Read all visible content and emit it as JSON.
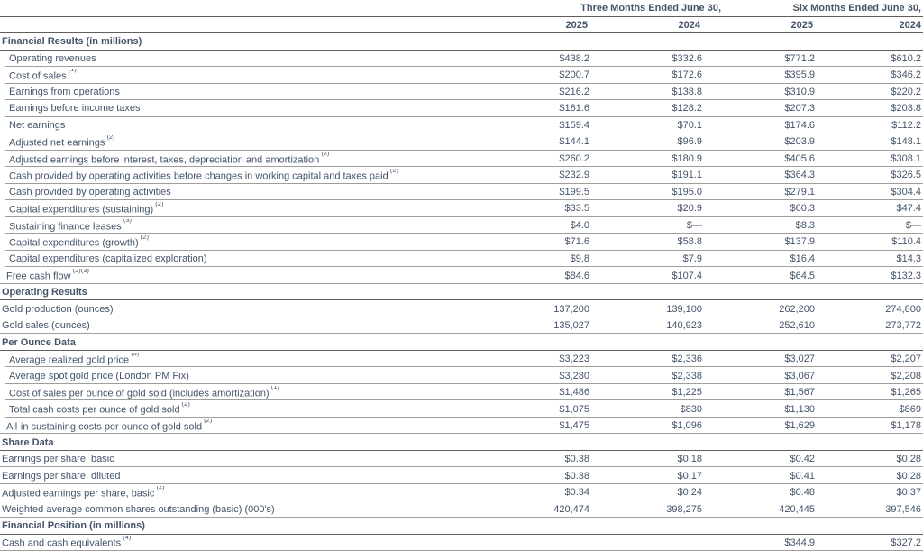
{
  "colors": {
    "text": "#44546a",
    "line_dark": "#5f5f5f",
    "line_light": "#9e9e9e",
    "background": "#ffffff"
  },
  "table": {
    "period_headers": [
      "Three Months Ended June 30,",
      "Six Months Ended June 30,"
    ],
    "year_headers": [
      "2025",
      "2024",
      "2025",
      "2024"
    ],
    "rows": [
      {
        "kind": "section",
        "label": "Financial Results (in millions)"
      },
      {
        "kind": "data",
        "indent": 1,
        "cut": true,
        "label": "Operating revenues",
        "sup": "",
        "values": [
          "$438.2",
          "$332.6",
          "$771.2",
          "$610.2"
        ]
      },
      {
        "kind": "data",
        "indent": 1,
        "cut": true,
        "label": "Cost of sales",
        "sup": "(1)",
        "values": [
          "$200.7",
          "$172.6",
          "$395.9",
          "$346.2"
        ]
      },
      {
        "kind": "data",
        "indent": 1,
        "cut": true,
        "label": "Earnings from operations",
        "sup": "",
        "values": [
          "$216.2",
          "$138.8",
          "$310.9",
          "$220.2"
        ]
      },
      {
        "kind": "data",
        "indent": 1,
        "cut": true,
        "label": "Earnings before income taxes",
        "sup": "",
        "values": [
          "$181.6",
          "$128.2",
          "$207.3",
          "$203.8"
        ]
      },
      {
        "kind": "data",
        "indent": 1,
        "cut": true,
        "label": "Net earnings",
        "sup": "",
        "values": [
          "$159.4",
          "$70.1",
          "$174.6",
          "$112.2"
        ]
      },
      {
        "kind": "data",
        "indent": 1,
        "cut": true,
        "label": "Adjusted net earnings",
        "sup": "(2)",
        "values": [
          "$144.1",
          "$96.9",
          "$203.9",
          "$148.1"
        ]
      },
      {
        "kind": "data",
        "indent": 1,
        "cut": true,
        "label": "Adjusted earnings before interest, taxes, depreciation and amortization",
        "sup": "(2)",
        "values": [
          "$260.2",
          "$180.9",
          "$405.6",
          "$308.1"
        ]
      },
      {
        "kind": "data",
        "indent": 1,
        "cut": true,
        "label": "Cash provided by operating activities before changes in working capital and taxes paid",
        "sup": "(2)",
        "values": [
          "$232.9",
          "$191.1",
          "$364.3",
          "$326.5"
        ]
      },
      {
        "kind": "data",
        "indent": 1,
        "cut": true,
        "label": "Cash provided by operating activities",
        "sup": "",
        "values": [
          "$199.5",
          "$195.0",
          "$279.1",
          "$304.4"
        ]
      },
      {
        "kind": "data",
        "indent": 1,
        "cut": true,
        "label": "Capital expenditures (sustaining)",
        "sup": "(2)",
        "values": [
          "$33.5",
          "$20.9",
          "$60.3",
          "$47.4"
        ]
      },
      {
        "kind": "data",
        "indent": 1,
        "cut": true,
        "label": "Sustaining finance leases",
        "sup": "(3)",
        "values": [
          "$4.0",
          "$—",
          "$8.3",
          "$—"
        ]
      },
      {
        "kind": "data",
        "indent": 1,
        "cut": true,
        "label": "Capital expenditures (growth)",
        "sup": "(2)",
        "values": [
          "$71.6",
          "$58.8",
          "$137.9",
          "$110.4"
        ]
      },
      {
        "kind": "data",
        "indent": 1,
        "cut": true,
        "label": "Capital expenditures (capitalized exploration)",
        "sup": "",
        "values": [
          "$9.8",
          "$7.9",
          "$16.4",
          "$14.3"
        ]
      },
      {
        "kind": "data",
        "indent": 2,
        "cut": false,
        "label": "Free cash flow",
        "sup": "(2)(3)",
        "values": [
          "$84.6",
          "$107.4",
          "$64.5",
          "$132.3"
        ]
      },
      {
        "kind": "section",
        "label": "Operating Results"
      },
      {
        "kind": "data",
        "indent": 0,
        "cut": false,
        "label": "Gold production (ounces)",
        "sup": "",
        "values": [
          "137,200",
          "139,100",
          "262,200",
          "274,800"
        ]
      },
      {
        "kind": "data",
        "indent": 0,
        "cut": false,
        "label": "Gold sales (ounces)",
        "sup": "",
        "values": [
          "135,027",
          "140,923",
          "252,610",
          "273,772"
        ]
      },
      {
        "kind": "section",
        "label": "Per Ounce Data"
      },
      {
        "kind": "data",
        "indent": 1,
        "cut": true,
        "label": "Average realized gold price",
        "sup": "(5)",
        "values": [
          "$3,223",
          "$2,336",
          "$3,027",
          "$2,207"
        ]
      },
      {
        "kind": "data",
        "indent": 1,
        "cut": true,
        "label": "Average spot gold price (London PM Fix)",
        "sup": "",
        "values": [
          "$3,280",
          "$2,338",
          "$3,067",
          "$2,208"
        ]
      },
      {
        "kind": "data",
        "indent": 1,
        "cut": true,
        "label": "Cost of sales per ounce of gold sold (includes amortization)",
        "sup": "(1)",
        "values": [
          "$1,486",
          "$1,225",
          "$1,567",
          "$1,265"
        ]
      },
      {
        "kind": "data",
        "indent": 1,
        "cut": true,
        "label": "Total cash costs per ounce of gold sold",
        "sup": "(2)",
        "values": [
          "$1,075",
          "$830",
          "$1,130",
          "$869"
        ]
      },
      {
        "kind": "data",
        "indent": 2,
        "cut": false,
        "label": "All-in sustaining costs per ounce of gold sold",
        "sup": "(2)",
        "values": [
          "$1,475",
          "$1,096",
          "$1,629",
          "$1,178"
        ]
      },
      {
        "kind": "section",
        "label": "Share Data"
      },
      {
        "kind": "data",
        "indent": 0,
        "cut": false,
        "label": "Earnings per share, basic",
        "sup": "",
        "values": [
          "$0.38",
          "$0.18",
          "$0.42",
          "$0.28"
        ]
      },
      {
        "kind": "data",
        "indent": 0,
        "cut": false,
        "label": "Earnings per share, diluted",
        "sup": "",
        "values": [
          "$0.38",
          "$0.17",
          "$0.41",
          "$0.28"
        ]
      },
      {
        "kind": "data",
        "indent": 0,
        "cut": false,
        "label": "Adjusted earnings per share, basic",
        "sup": "(2)",
        "values": [
          "$0.34",
          "$0.24",
          "$0.48",
          "$0.37"
        ]
      },
      {
        "kind": "data",
        "indent": 0,
        "cut": false,
        "label": "Weighted average common shares outstanding (basic) (000's)",
        "sup": "",
        "values": [
          "420,474",
          "398,275",
          "420,445",
          "397,546"
        ]
      },
      {
        "kind": "section",
        "label": "Financial Position (in millions)"
      },
      {
        "kind": "data",
        "indent": 0,
        "cut": false,
        "label": "Cash and cash equivalents",
        "sup": "(4)",
        "values": [
          "",
          "",
          "$344.9",
          "$327.2"
        ]
      }
    ]
  }
}
